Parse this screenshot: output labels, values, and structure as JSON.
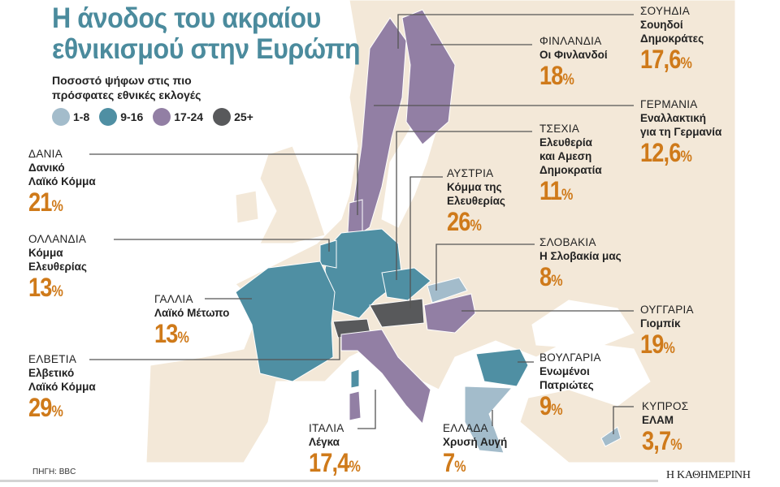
{
  "title": [
    "Η άνοδος του ακραίου",
    "εθνικισμού στην Ευρώπη"
  ],
  "subtitle": [
    "Ποσοστό ψήφων στις πιο",
    "πρόσφατες εθνικές εκλογές"
  ],
  "legend": [
    {
      "label": "1-8",
      "color": "#a3bccb"
    },
    {
      "label": "9-16",
      "color": "#4f8fa3"
    },
    {
      "label": "17-24",
      "color": "#927fa4"
    },
    {
      "label": "25+",
      "color": "#58595b"
    }
  ],
  "countries": [
    {
      "country": "ΔΑΝΙΑ",
      "party": [
        "Δανικό",
        "Λαϊκό Κόμμα"
      ],
      "value": "21",
      "unit": "%"
    },
    {
      "country": "ΟΛΛΑΝΔΙΑ",
      "party": [
        "Κόμμα",
        "Ελευθερίας"
      ],
      "value": "13",
      "unit": "%"
    },
    {
      "country": "ΓΑΛΛΙΑ",
      "party": [
        "Λαϊκό Μέτωπο"
      ],
      "value": "13",
      "unit": "%"
    },
    {
      "country": "ΕΛΒΕΤΙΑ",
      "party": [
        "Ελβετικό",
        "Λαϊκό Κόμμα"
      ],
      "value": "29",
      "unit": "%"
    },
    {
      "country": "ΙΤΑΛΙΑ",
      "party": [
        "Λέγκα"
      ],
      "value": "17,4",
      "unit": "%"
    },
    {
      "country": "ΕΛΛΑΔΑ",
      "party": [
        "Χρυσή Αυγή"
      ],
      "value": "7",
      "unit": "%"
    },
    {
      "country": "ΚΥΠΡΟΣ",
      "party": [
        "ΕΛΑΜ"
      ],
      "value": "3,7",
      "unit": "%"
    },
    {
      "country": "ΒΟΥΛΓΑΡΙΑ",
      "party": [
        "Ενωμένοι",
        "Πατριώτες"
      ],
      "value": "9",
      "unit": "%"
    },
    {
      "country": "ΟΥΓΓΑΡΙΑ",
      "party": [
        "Γιομπίκ"
      ],
      "value": "19",
      "unit": "%"
    },
    {
      "country": "ΣΛΟΒΑΚΙΑ",
      "party": [
        "Η Σλοβακία μας"
      ],
      "value": "8",
      "unit": "%"
    },
    {
      "country": "ΑΥΣΤΡΙΑ",
      "party": [
        "Κόμμα της",
        "Ελευθερίας"
      ],
      "value": "26",
      "unit": "%"
    },
    {
      "country": "ΤΣΕΧΙΑ",
      "party": [
        "Ελευθερία",
        "και Αμεση",
        "Δημοκρατία"
      ],
      "value": "11",
      "unit": "%"
    },
    {
      "country": "ΓΕΡΜΑΝΙΑ",
      "party": [
        "Εναλλακτική",
        "για τη Γερμανία"
      ],
      "value": "12,6",
      "unit": "%"
    },
    {
      "country": "ΦΙΝΛΑΝΔΙΑ",
      "party": [
        "Οι Φινλανδοί"
      ],
      "value": "18",
      "unit": "%"
    },
    {
      "country": "ΣΟΥΗΔΙΑ",
      "party": [
        "Σουηδοί",
        "Δημοκράτες"
      ],
      "value": "17,6",
      "unit": "%"
    }
  ],
  "source": "ΠΗΓΗ: BBC",
  "brand": "Η ΚΑΘΗΜΕΡΙΝΗ",
  "colors": {
    "land": "#f3e8d8",
    "value": "#cf7a1a",
    "title": "#4b8b9d"
  }
}
